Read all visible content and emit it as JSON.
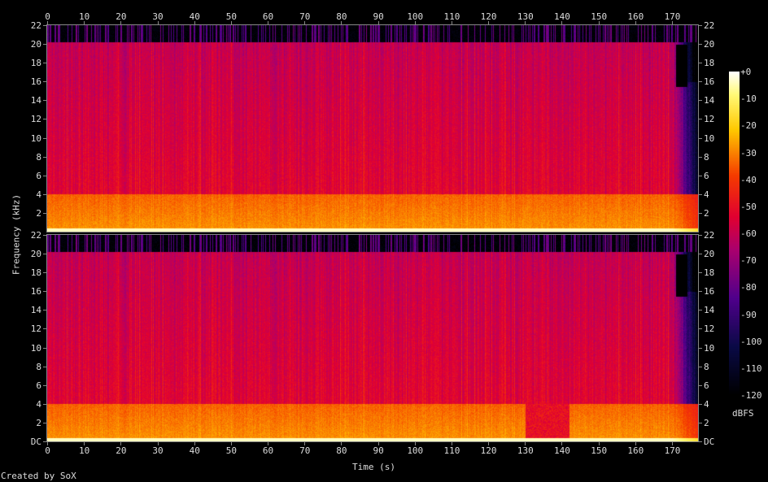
{
  "chart_data": {
    "type": "heatmap",
    "subtype": "spectrogram",
    "channels": 2,
    "xlabel": "Time (s)",
    "ylabel": "Frequency (kHz)",
    "xlim": [
      0,
      177
    ],
    "ylim": [
      0,
      22
    ],
    "x_ticks": [
      0,
      10,
      20,
      30,
      40,
      50,
      60,
      70,
      80,
      90,
      100,
      110,
      120,
      130,
      140,
      150,
      160,
      170
    ],
    "y_ticks": [
      "DC",
      "2",
      "4",
      "6",
      "8",
      "10",
      "12",
      "14",
      "16",
      "18",
      "20",
      "22"
    ],
    "colorbar": {
      "label": "dBFS",
      "range": [
        -120,
        0
      ],
      "ticks": [
        "+0",
        "-10",
        "-20",
        "-30",
        "-40",
        "-50",
        "-60",
        "-70",
        "-80",
        "-90",
        "-100",
        "-110",
        "-120"
      ]
    },
    "description_values": {
      "content_cutoff_khz": 20,
      "fade_out_start_s": 170,
      "low_band_khz": [
        0,
        4
      ]
    }
  },
  "footer": "Created by SoX"
}
